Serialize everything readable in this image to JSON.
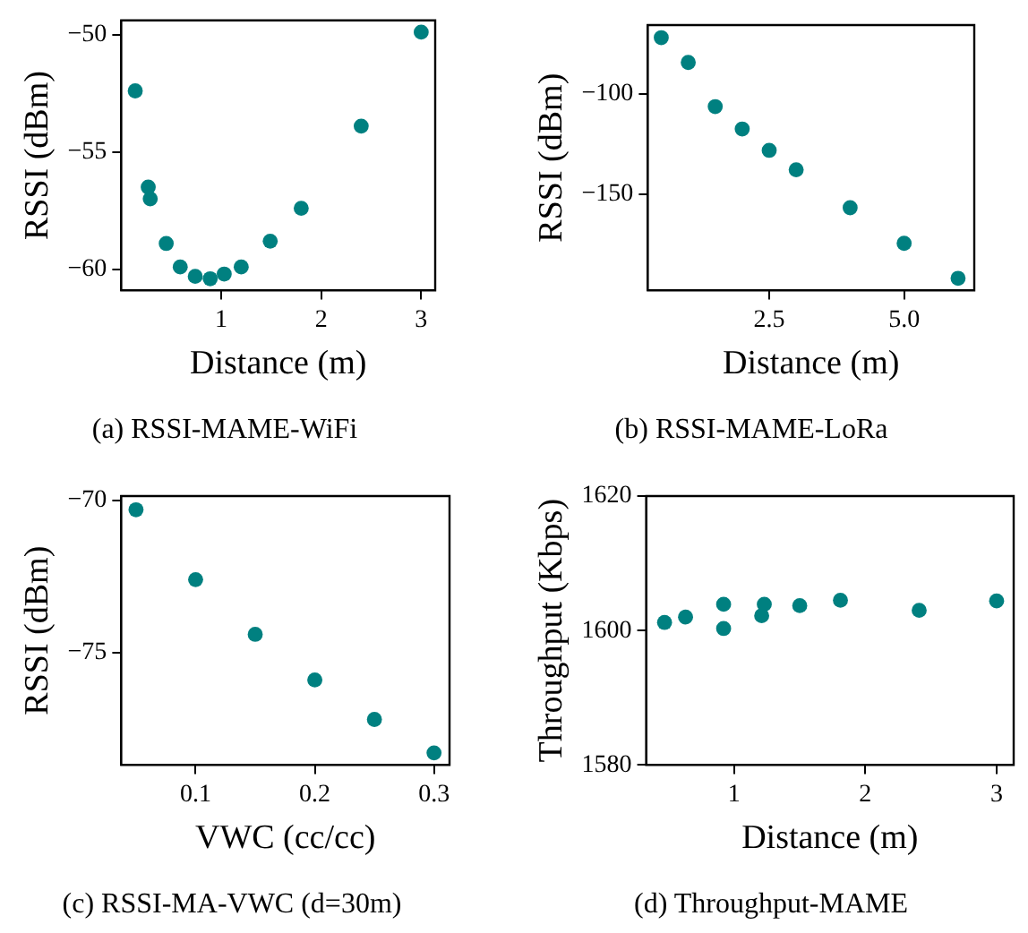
{
  "chart_data": [
    {
      "type": "scatter",
      "title": "(a) RSSI-MAME-WiFi",
      "xlabel": "Distance (m)",
      "ylabel": "RSSI (dBm)",
      "marker": "circle",
      "grid": false,
      "legend": false,
      "x": [
        0.14,
        0.27,
        0.29,
        0.45,
        0.59,
        0.74,
        0.89,
        1.03,
        1.2,
        1.49,
        1.8,
        2.4,
        3.0
      ],
      "series": [
        {
          "color": "#008080",
          "values": [
            -52.4,
            -56.5,
            -57.0,
            -58.9,
            -59.9,
            -60.3,
            -60.4,
            -60.2,
            -59.9,
            -58.8,
            -57.4,
            -53.9,
            -49.9
          ]
        }
      ],
      "xlim": [
        0.0,
        3.14
      ],
      "ylim": [
        -60.9,
        -49.4
      ],
      "xticks": [
        1,
        2,
        3
      ],
      "yticks": [
        {
          "value": -60,
          "label": "−60"
        },
        {
          "value": -55,
          "label": "−55"
        },
        {
          "value": -50,
          "label": "−50"
        }
      ]
    },
    {
      "type": "scatter",
      "title": "(b) RSSI-MAME-LoRa",
      "xlabel": "Distance (m)",
      "ylabel": "RSSI (dBm)",
      "marker": "circle",
      "grid": false,
      "legend": false,
      "x": [
        0.5,
        1.0,
        1.5,
        2.0,
        2.5,
        3.0,
        4.0,
        5.0,
        6.0
      ],
      "series": [
        {
          "color": "#008080",
          "values": [
            -71.8,
            -84.2,
            -106.3,
            -117.5,
            -128.2,
            -137.9,
            -156.9,
            -174.7,
            -192.2
          ]
        }
      ],
      "xlim": [
        0.25,
        6.3
      ],
      "ylim": [
        -198.3,
        -65.5
      ],
      "xticks": [
        {
          "value": 2.5,
          "label": "2.5"
        },
        {
          "value": 5,
          "label": "5.0"
        }
      ],
      "yticks": [
        {
          "value": -150,
          "label": "−150"
        },
        {
          "value": -100,
          "label": "−100"
        }
      ]
    },
    {
      "type": "scatter",
      "title": "(c) RSSI-MA-VWC (d=30m)",
      "xlabel": "VWC (cc/cc)",
      "ylabel": "RSSI (dBm)",
      "marker": "circle",
      "grid": false,
      "legend": false,
      "x": [
        0.05,
        0.1,
        0.15,
        0.2,
        0.25,
        0.3
      ],
      "series": [
        {
          "color": "#008080",
          "values": [
            -70.3,
            -72.6,
            -74.4,
            -75.9,
            -77.2,
            -78.3
          ]
        }
      ],
      "xlim": [
        0.0376,
        0.313
      ],
      "ylim": [
        -78.7,
        -69.85
      ],
      "xticks": [
        0.1,
        0.2,
        0.3
      ],
      "yticks": [
        {
          "value": -75,
          "label": "−75"
        },
        {
          "value": -70,
          "label": "−70"
        }
      ]
    },
    {
      "type": "scatter",
      "title": "(d) Throughput-MAME",
      "xlabel": "Distance (m)",
      "ylabel": "Throughput (Kbps)",
      "marker": "circle",
      "grid": false,
      "legend": false,
      "x": [
        0.47,
        0.63,
        0.92,
        0.92,
        1.21,
        1.23,
        1.5,
        1.81,
        2.41,
        3.0
      ],
      "series": [
        {
          "color": "#008080",
          "values": [
            1601.2,
            1602.0,
            1603.9,
            1600.3,
            1602.2,
            1603.9,
            1603.7,
            1604.5,
            1603.0,
            1604.4
          ]
        }
      ],
      "xlim": [
        0.33,
        3.13
      ],
      "ylim": [
        1580,
        1620
      ],
      "xticks": [
        1,
        2,
        3
      ],
      "yticks": [
        1580,
        1600,
        1620
      ]
    }
  ]
}
